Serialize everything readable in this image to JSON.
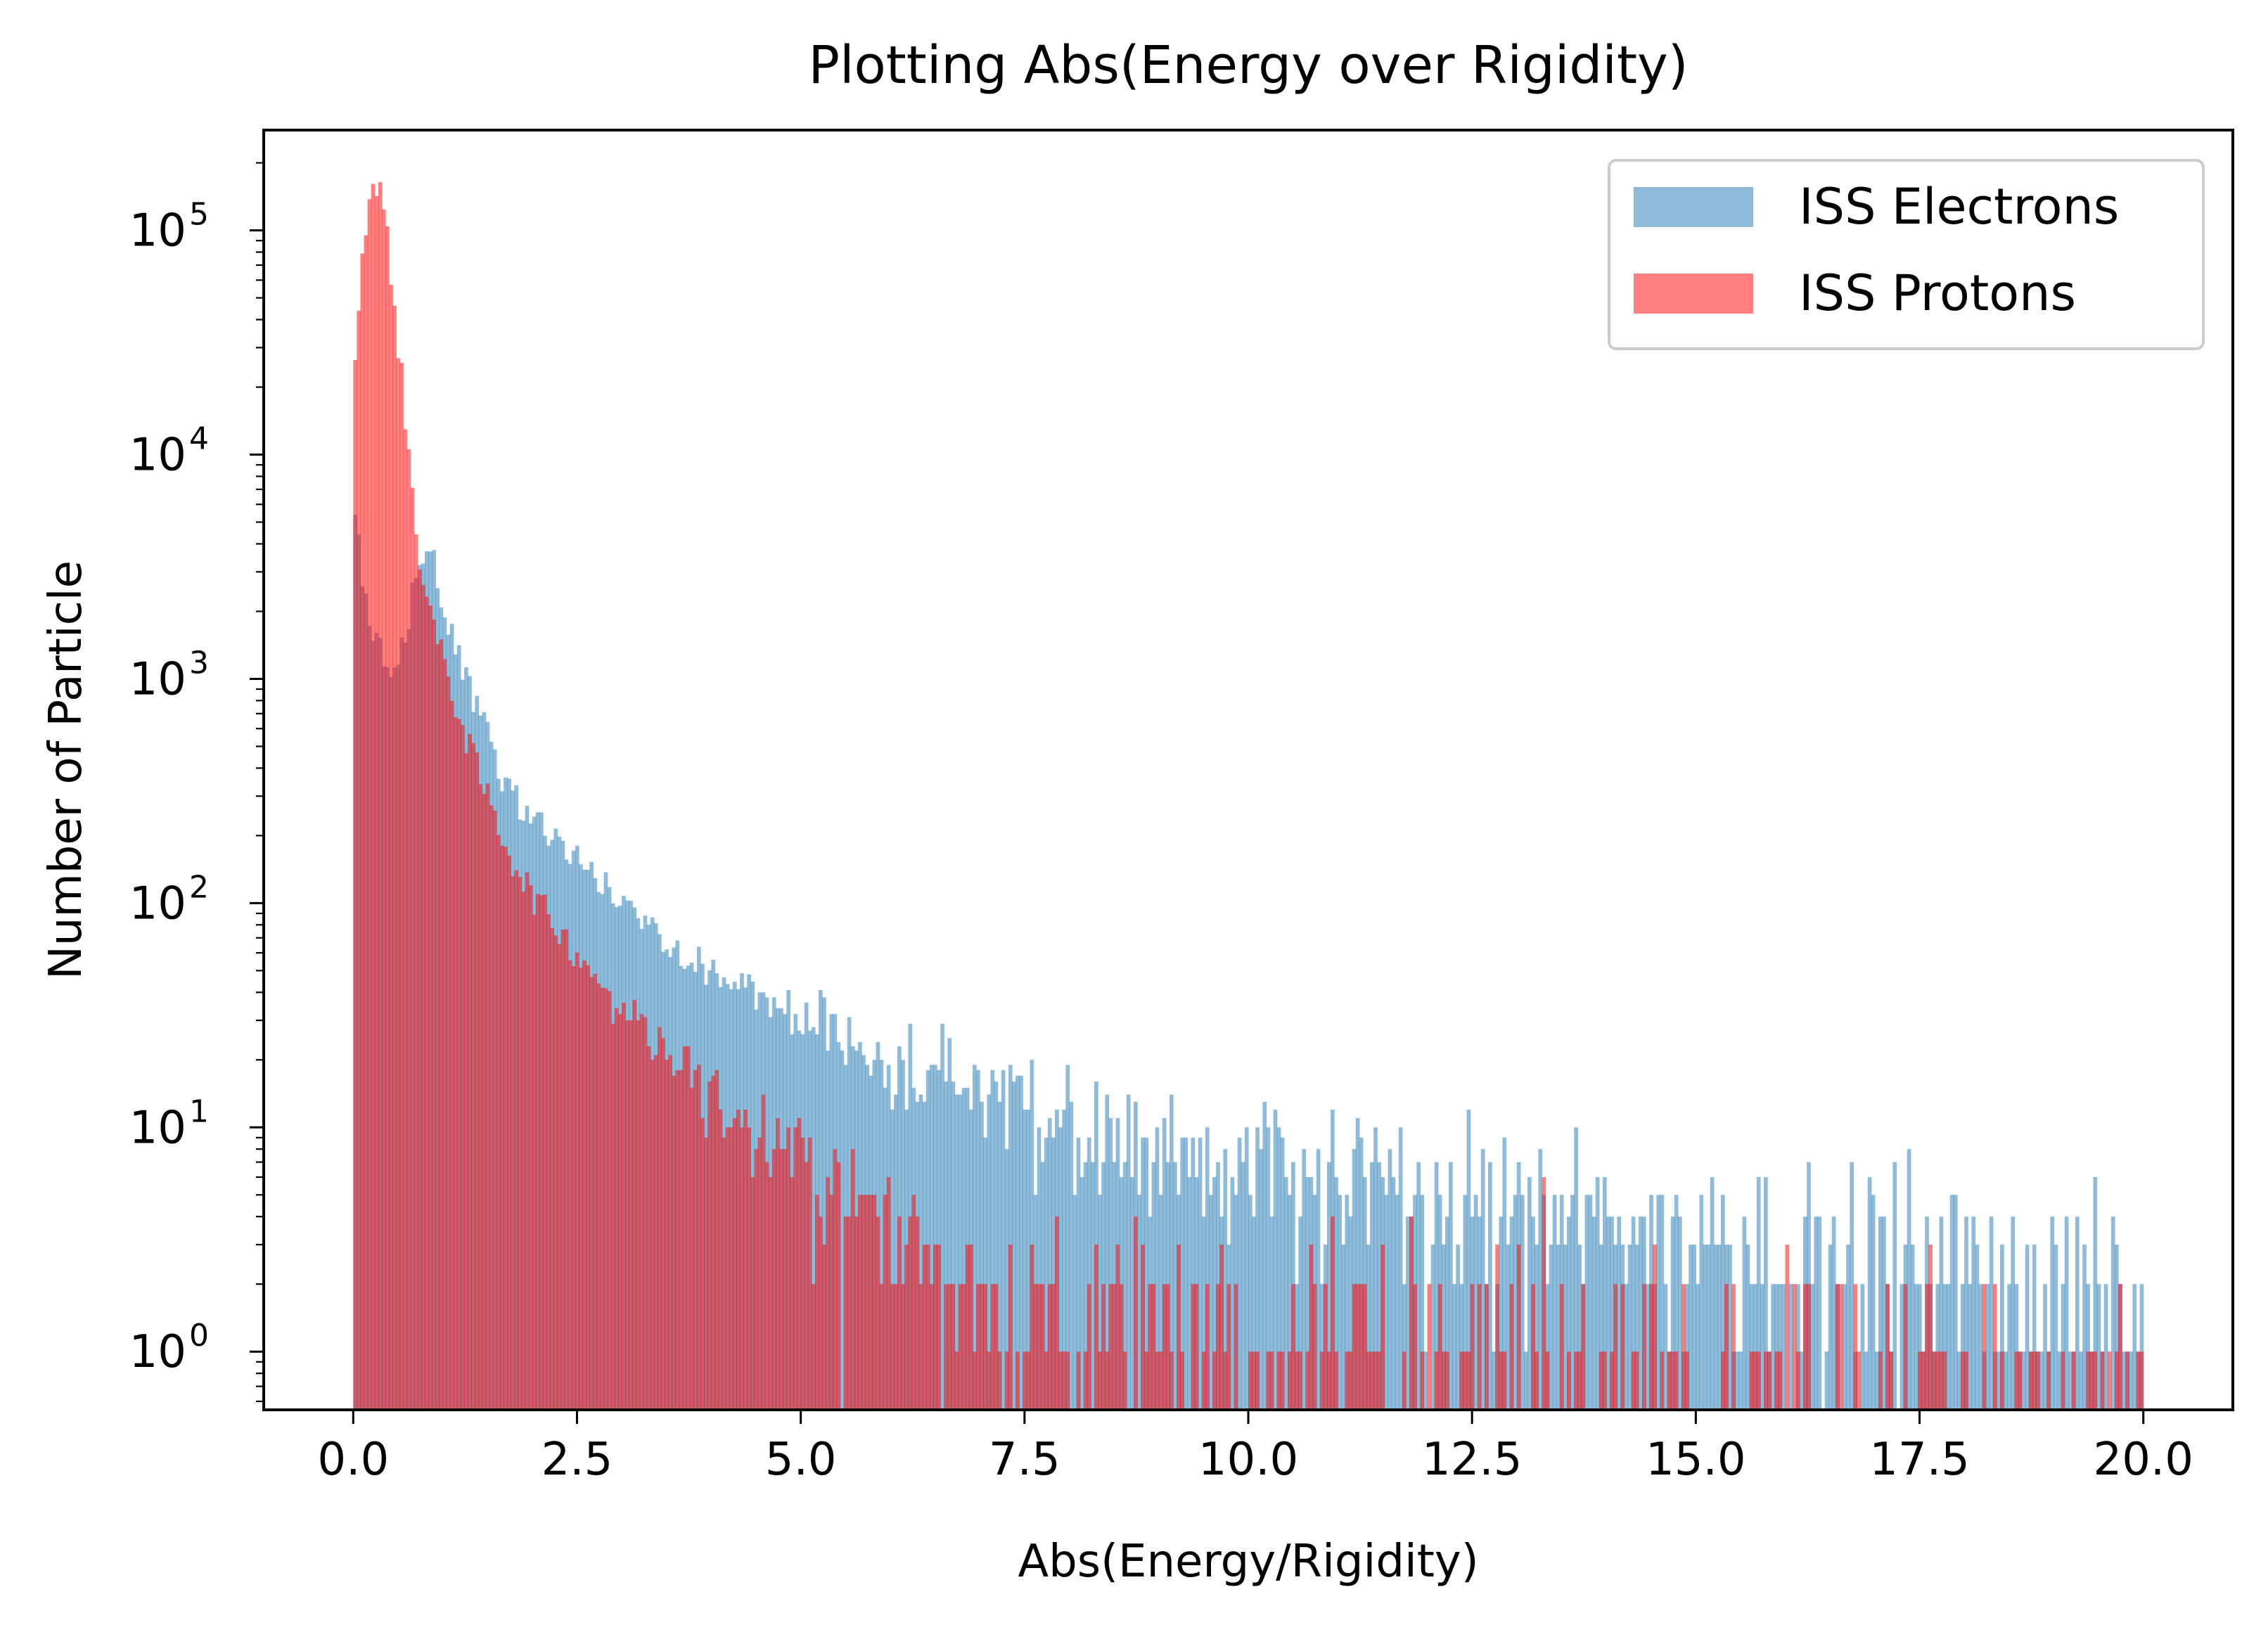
{
  "chart_data": {
    "type": "histogram",
    "title": "Plotting Abs(Energy over Rigidity)",
    "xlabel": "Abs(Energy/Rigidity)",
    "ylabel": "Number of Particle",
    "xlim": [
      -1.0,
      21.0
    ],
    "ylim": [
      0.55,
      280000
    ],
    "yscale": "log",
    "x_ticks": [
      0.0,
      2.5,
      5.0,
      7.5,
      10.0,
      12.5,
      15.0,
      17.5,
      20.0
    ],
    "x_tick_labels": [
      "0.0",
      "2.5",
      "5.0",
      "7.5",
      "10.0",
      "12.5",
      "15.0",
      "17.5",
      "20.0"
    ],
    "y_ticks": [
      1,
      10,
      100,
      1000,
      10000,
      100000
    ],
    "y_tick_labels": [
      {
        "base": "10",
        "exp": "0"
      },
      {
        "base": "10",
        "exp": "1"
      },
      {
        "base": "10",
        "exp": "2"
      },
      {
        "base": "10",
        "exp": "3"
      },
      {
        "base": "10",
        "exp": "4"
      },
      {
        "base": "10",
        "exp": "5"
      }
    ],
    "grid": false,
    "legend_position": "top-right",
    "bin_range": [
      0,
      20
    ],
    "bins": 500,
    "series": [
      {
        "name": "ISS Electrons",
        "color": "#1f77b4",
        "alpha": 0.5,
        "profile": [
          [
            0.0,
            6500
          ],
          [
            0.1,
            2600
          ],
          [
            0.2,
            1700
          ],
          [
            0.3,
            1300
          ],
          [
            0.4,
            900
          ],
          [
            0.5,
            1100
          ],
          [
            0.6,
            1800
          ],
          [
            0.7,
            3000
          ],
          [
            0.8,
            3900
          ],
          [
            0.9,
            3200
          ],
          [
            1.0,
            2200
          ],
          [
            1.1,
            1500
          ],
          [
            1.2,
            1150
          ],
          [
            1.3,
            900
          ],
          [
            1.4,
            700
          ],
          [
            1.5,
            550
          ],
          [
            1.6,
            430
          ],
          [
            1.7,
            350
          ],
          [
            1.8,
            300
          ],
          [
            2.0,
            240
          ],
          [
            2.5,
            160
          ],
          [
            3.0,
            100
          ],
          [
            3.5,
            70
          ],
          [
            4.0,
            50
          ],
          [
            5.0,
            32
          ],
          [
            6.0,
            20
          ],
          [
            7.0,
            14
          ],
          [
            8.0,
            10
          ],
          [
            10.0,
            7
          ],
          [
            12.0,
            5
          ],
          [
            15.0,
            3.5
          ],
          [
            18.0,
            2.5
          ],
          [
            20.0,
            2.0
          ]
        ]
      },
      {
        "name": "ISS Protons",
        "color": "#ff0000",
        "alpha": 0.5,
        "profile": [
          [
            0.0,
            18000
          ],
          [
            0.05,
            40000
          ],
          [
            0.1,
            80000
          ],
          [
            0.15,
            125000
          ],
          [
            0.2,
            148000
          ],
          [
            0.25,
            155000
          ],
          [
            0.3,
            145000
          ],
          [
            0.35,
            115000
          ],
          [
            0.4,
            80000
          ],
          [
            0.45,
            52000
          ],
          [
            0.5,
            32000
          ],
          [
            0.55,
            20000
          ],
          [
            0.6,
            12000
          ],
          [
            0.65,
            7500
          ],
          [
            0.7,
            4500
          ],
          [
            0.8,
            2600
          ],
          [
            0.9,
            1700
          ],
          [
            1.0,
            1200
          ],
          [
            1.1,
            900
          ],
          [
            1.2,
            650
          ],
          [
            1.4,
            380
          ],
          [
            1.6,
            230
          ],
          [
            1.8,
            150
          ],
          [
            2.0,
            110
          ],
          [
            2.5,
            60
          ],
          [
            3.0,
            35
          ],
          [
            3.5,
            22
          ],
          [
            4.0,
            14
          ],
          [
            5.0,
            7
          ],
          [
            6.0,
            3.5
          ],
          [
            7.0,
            2.0
          ],
          [
            8.0,
            1.4
          ],
          [
            10.0,
            1.1
          ],
          [
            12.0,
            0.9
          ],
          [
            15.0,
            0.75
          ],
          [
            20.0,
            0.6
          ]
        ]
      }
    ]
  }
}
